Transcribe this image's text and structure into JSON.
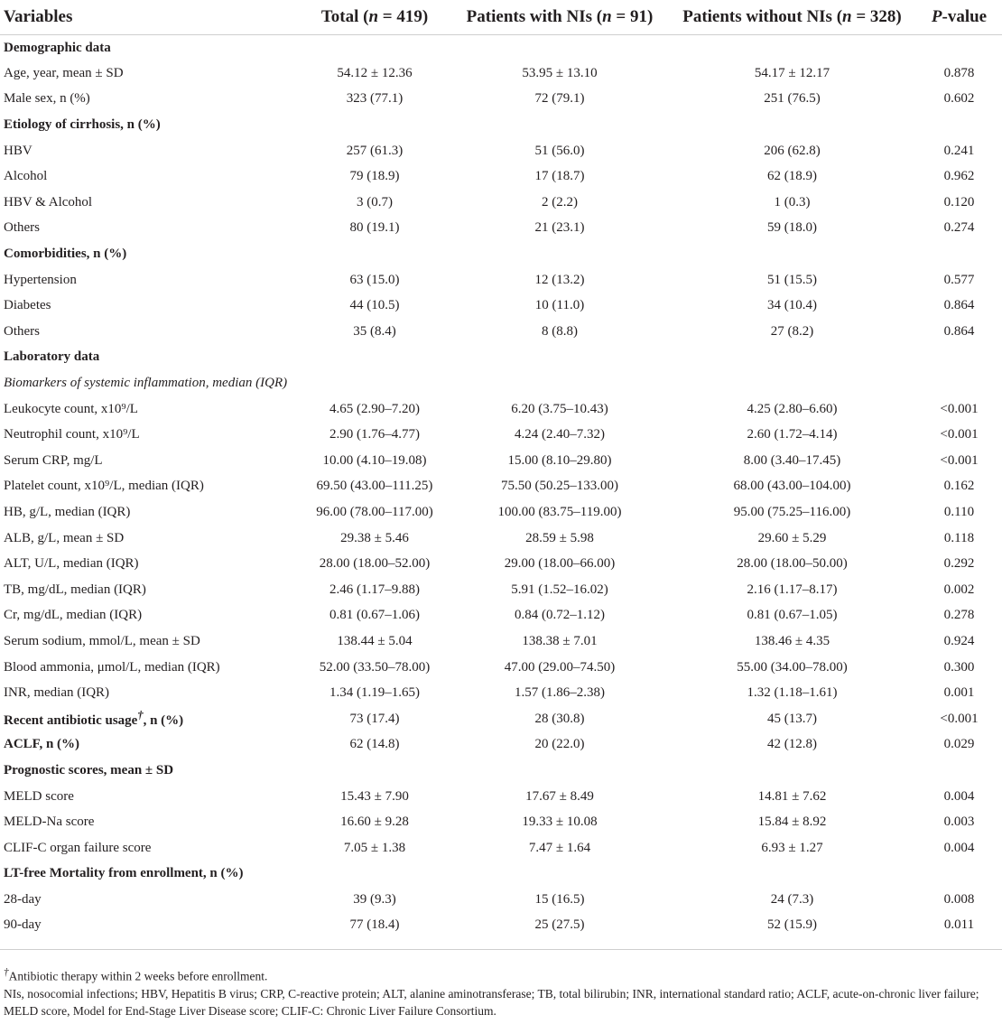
{
  "header": {
    "variables": "Variables",
    "total": "Total (n = 419)",
    "with_nis": "Patients with NIs (n = 91)",
    "without_nis": "Patients without NIs (n = 328)",
    "p_value": "P-value"
  },
  "rows": [
    {
      "type": "section",
      "label": "Demographic data"
    },
    {
      "type": "data",
      "label": "Age, year, mean ± SD",
      "total": "54.12 ± 12.36",
      "with": "53.95 ± 13.10",
      "without": "54.17 ± 12.17",
      "p": "0.878"
    },
    {
      "type": "data",
      "label": "Male sex, n (%)",
      "total": "323 (77.1)",
      "with": "72 (79.1)",
      "without": "251 (76.5)",
      "p": "0.602"
    },
    {
      "type": "section",
      "label": "Etiology of cirrhosis, n (%)"
    },
    {
      "type": "data",
      "label": "HBV",
      "total": "257 (61.3)",
      "with": "51 (56.0)",
      "without": "206 (62.8)",
      "p": "0.241"
    },
    {
      "type": "data",
      "label": "Alcohol",
      "total": "79 (18.9)",
      "with": "17 (18.7)",
      "without": "62 (18.9)",
      "p": "0.962"
    },
    {
      "type": "data",
      "label": "HBV & Alcohol",
      "total": "3 (0.7)",
      "with": "2 (2.2)",
      "without": "1 (0.3)",
      "p": "0.120"
    },
    {
      "type": "data",
      "label": "Others",
      "total": "80 (19.1)",
      "with": "21 (23.1)",
      "without": "59 (18.0)",
      "p": "0.274"
    },
    {
      "type": "section",
      "label": "Comorbidities, n (%)"
    },
    {
      "type": "data",
      "label": "Hypertension",
      "total": "63 (15.0)",
      "with": "12 (13.2)",
      "without": "51 (15.5)",
      "p": "0.577"
    },
    {
      "type": "data",
      "label": "Diabetes",
      "total": "44 (10.5)",
      "with": "10 (11.0)",
      "without": "34 (10.4)",
      "p": "0.864"
    },
    {
      "type": "data",
      "label": "Others",
      "total": "35 (8.4)",
      "with": "8 (8.8)",
      "without": "27 (8.2)",
      "p": "0.864"
    },
    {
      "type": "section",
      "label": "Laboratory data"
    },
    {
      "type": "subsection",
      "label": "Biomarkers of systemic inflammation, median (IQR)"
    },
    {
      "type": "data",
      "label": "Leukocyte count, x10⁹/L",
      "total": "4.65 (2.90–7.20)",
      "with": "6.20 (3.75–10.43)",
      "without": "4.25 (2.80–6.60)",
      "p": "<0.001"
    },
    {
      "type": "data",
      "label": "Neutrophil count, x10⁹/L",
      "total": "2.90 (1.76–4.77)",
      "with": "4.24 (2.40–7.32)",
      "without": "2.60 (1.72–4.14)",
      "p": "<0.001"
    },
    {
      "type": "data",
      "label": "Serum CRP, mg/L",
      "total": "10.00 (4.10–19.08)",
      "with": "15.00 (8.10–29.80)",
      "without": "8.00 (3.40–17.45)",
      "p": "<0.001"
    },
    {
      "type": "data",
      "label": "Platelet count, x10⁹/L, median (IQR)",
      "total": "69.50 (43.00–111.25)",
      "with": "75.50 (50.25–133.00)",
      "without": "68.00 (43.00–104.00)",
      "p": "0.162"
    },
    {
      "type": "data",
      "label": "HB, g/L, median (IQR)",
      "total": "96.00 (78.00–117.00)",
      "with": "100.00 (83.75–119.00)",
      "without": "95.00 (75.25–116.00)",
      "p": "0.110"
    },
    {
      "type": "data",
      "label": "ALB, g/L, mean ± SD",
      "total": "29.38 ± 5.46",
      "with": "28.59 ± 5.98",
      "without": "29.60 ± 5.29",
      "p": "0.118"
    },
    {
      "type": "data",
      "label": "ALT, U/L, median (IQR)",
      "total": "28.00 (18.00–52.00)",
      "with": "29.00 (18.00–66.00)",
      "without": "28.00 (18.00–50.00)",
      "p": "0.292"
    },
    {
      "type": "data",
      "label": "TB, mg/dL, median (IQR)",
      "total": "2.46 (1.17–9.88)",
      "with": "5.91 (1.52–16.02)",
      "without": "2.16 (1.17–8.17)",
      "p": "0.002"
    },
    {
      "type": "data",
      "label": "Cr, mg/dL, median (IQR)",
      "total": "0.81 (0.67–1.06)",
      "with": "0.84 (0.72–1.12)",
      "without": "0.81 (0.67–1.05)",
      "p": "0.278"
    },
    {
      "type": "data",
      "label": "Serum sodium, mmol/L, mean ± SD",
      "total": "138.44 ± 5.04",
      "with": "138.38 ± 7.01",
      "without": "138.46 ± 4.35",
      "p": "0.924"
    },
    {
      "type": "data",
      "label": "Blood ammonia, μmol/L, median (IQR)",
      "total": "52.00 (33.50–78.00)",
      "with": "47.00 (29.00–74.50)",
      "without": "55.00 (34.00–78.00)",
      "p": "0.300"
    },
    {
      "type": "data",
      "label": "INR, median (IQR)",
      "total": "1.34 (1.19–1.65)",
      "with": "1.57 (1.86–2.38)",
      "without": "1.32 (1.18–1.61)",
      "p": "0.001"
    },
    {
      "type": "data-bold",
      "label": "Recent antibiotic usage†, n (%)",
      "total": "73 (17.4)",
      "with": "28 (30.8)",
      "without": "45 (13.7)",
      "p": "<0.001"
    },
    {
      "type": "data-bold",
      "label": "ACLF, n (%)",
      "total": "62 (14.8)",
      "with": "20 (22.0)",
      "without": "42 (12.8)",
      "p": "0.029"
    },
    {
      "type": "section",
      "label": "Prognostic scores, mean ± SD"
    },
    {
      "type": "data",
      "label": "MELD score",
      "total": "15.43 ± 7.90",
      "with": "17.67 ± 8.49",
      "without": "14.81 ± 7.62",
      "p": "0.004"
    },
    {
      "type": "data",
      "label": "MELD-Na score",
      "total": "16.60 ± 9.28",
      "with": "19.33 ± 10.08",
      "without": "15.84 ± 8.92",
      "p": "0.003"
    },
    {
      "type": "data",
      "label": "CLIF-C organ failure score",
      "total": "7.05 ± 1.38",
      "with": "7.47 ± 1.64",
      "without": "6.93 ± 1.27",
      "p": "0.004"
    },
    {
      "type": "section",
      "label": "LT-free Mortality from enrollment, n (%)"
    },
    {
      "type": "data",
      "label": "28-day",
      "total": "39 (9.3)",
      "with": "15 (16.5)",
      "without": "24 (7.3)",
      "p": "0.008"
    },
    {
      "type": "data",
      "label": "90-day",
      "total": "77 (18.4)",
      "with": "25 (27.5)",
      "without": "52 (15.9)",
      "p": "0.011"
    }
  ],
  "footnotes": {
    "dagger": "†Antibiotic therapy within 2 weeks before enrollment.",
    "abbreviations": "NIs, nosocomial infections; HBV, Hepatitis B virus; CRP, C-reactive protein; ALT, alanine aminotransferase; TB, total bilirubin; INR, international standard ratio; ACLF, acute-on-chronic liver failure; MELD score, Model for End-Stage Liver Disease score; CLIF-C: Chronic Liver Failure Consortium."
  }
}
